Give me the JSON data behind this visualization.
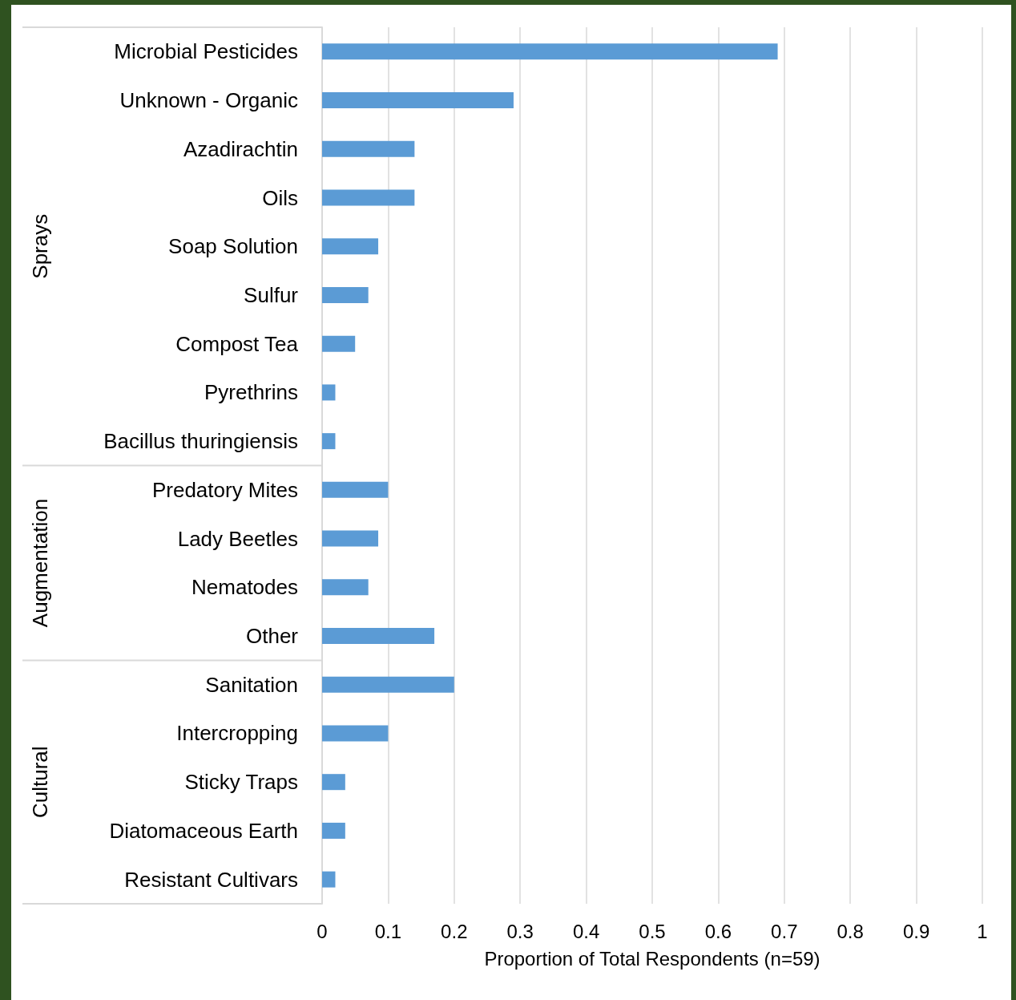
{
  "chart_data": {
    "type": "bar",
    "orientation": "horizontal",
    "xlabel": "Proportion of Total Respondents (n=59)",
    "categories": [
      "Microbial Pesticides",
      "Unknown - Organic",
      "Azadirachtin",
      "Oils",
      "Soap Solution",
      "Sulfur",
      "Compost Tea",
      "Pyrethrins",
      "Bacillus thuringiensis",
      "Predatory Mites",
      "Lady Beetles",
      "Nematodes",
      "Other",
      "Sanitation",
      "Intercropping",
      "Sticky Traps",
      "Diatomaceous Earth",
      "Resistant Cultivars"
    ],
    "values": [
      0.69,
      0.29,
      0.14,
      0.14,
      0.085,
      0.07,
      0.05,
      0.02,
      0.02,
      0.1,
      0.085,
      0.07,
      0.17,
      0.2,
      0.1,
      0.035,
      0.035,
      0.02
    ],
    "color": "#5b9bd5",
    "xlim": [
      0,
      1
    ],
    "xticks": [
      0,
      0.1,
      0.2,
      0.3,
      0.4,
      0.5,
      0.6,
      0.7,
      0.8,
      0.9,
      1
    ],
    "grid": "x",
    "annotations": [
      "Sprays",
      "Augmentation",
      "Cultural"
    ]
  }
}
